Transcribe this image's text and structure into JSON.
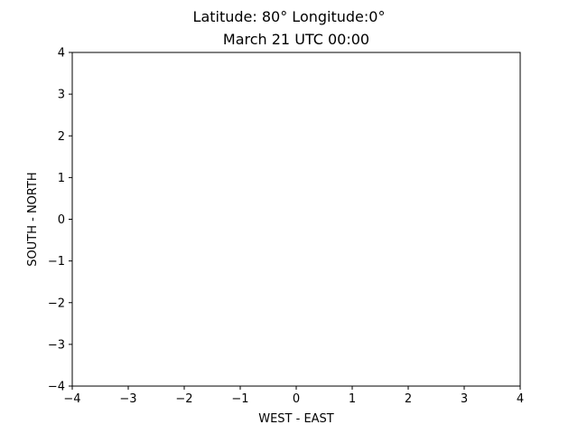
{
  "chart_data": {
    "type": "scatter",
    "title": "Latitude: 80° Longitude:0°",
    "subtitle": "March 21 UTC 00:00",
    "xlabel": "WEST - EAST",
    "ylabel": "SOUTH - NORTH",
    "xlim": [
      -4,
      4
    ],
    "ylim": [
      -4,
      4
    ],
    "xticks": [
      -4,
      -3,
      -2,
      -1,
      0,
      1,
      2,
      3,
      4
    ],
    "yticks": [
      -4,
      -3,
      -2,
      -1,
      0,
      1,
      2,
      3,
      4
    ],
    "xtick_labels": [
      "−4",
      "−3",
      "−2",
      "−1",
      "0",
      "1",
      "2",
      "3",
      "4"
    ],
    "ytick_labels": [
      "−4",
      "−3",
      "−2",
      "−1",
      "0",
      "1",
      "2",
      "3",
      "4"
    ],
    "grid": false,
    "series": []
  }
}
